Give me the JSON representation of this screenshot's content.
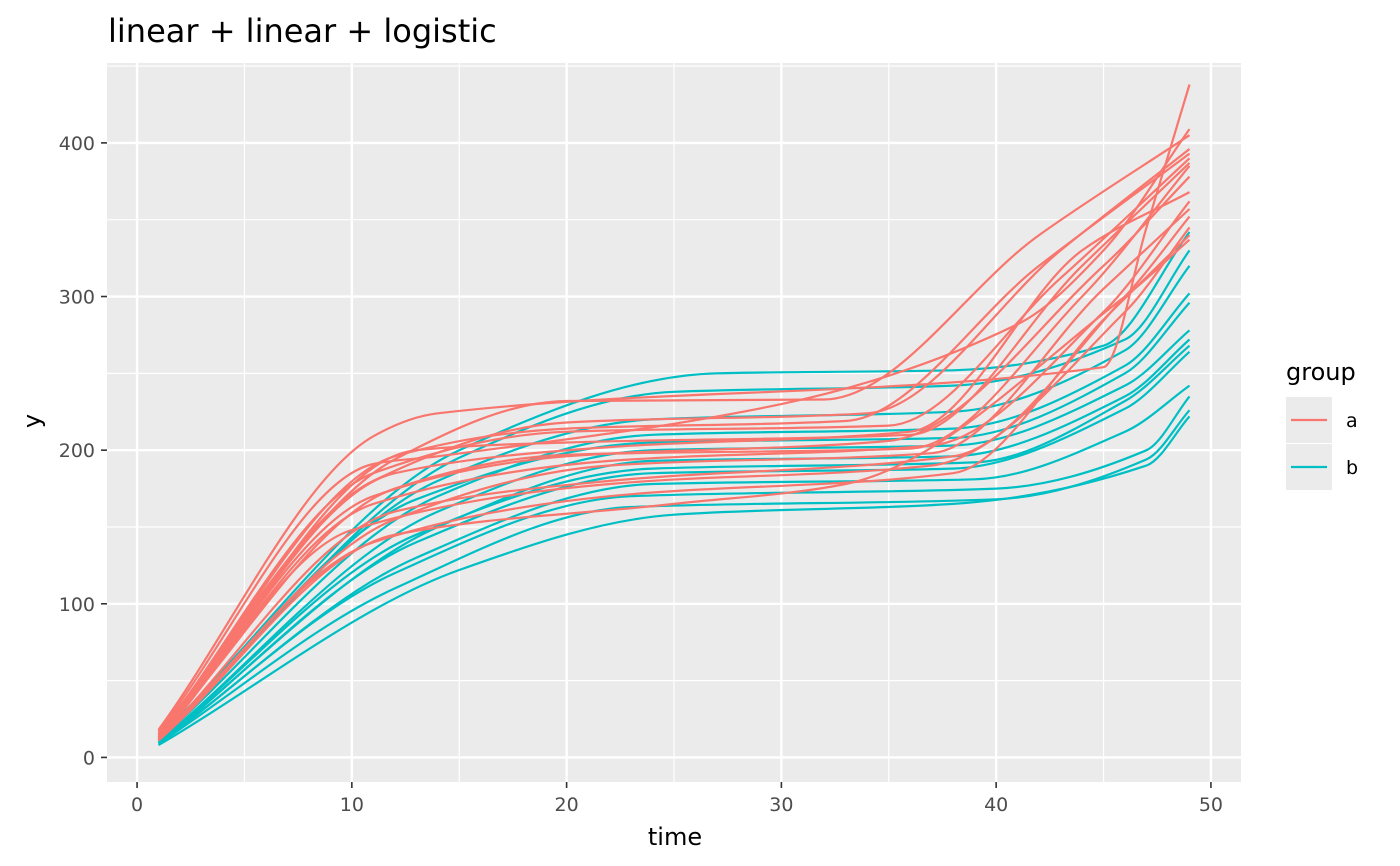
{
  "chart_data": {
    "type": "line",
    "title": "linear + linear + logistic",
    "xlabel": "time",
    "ylabel": "y",
    "xlim": [
      -1.4,
      51.4
    ],
    "ylim": [
      -16,
      452
    ],
    "x_ticks": [
      0,
      10,
      20,
      30,
      40,
      50
    ],
    "y_ticks": [
      0,
      100,
      200,
      300,
      400
    ],
    "x_tick_labels": [
      "0",
      "10",
      "20",
      "30",
      "40",
      "50"
    ],
    "y_tick_labels": [
      "0",
      "100",
      "200",
      "300",
      "400"
    ],
    "grid": true,
    "legend": {
      "title": "group",
      "position": "right",
      "entries": [
        {
          "label": "a",
          "color": "#F8766D"
        },
        {
          "label": "b",
          "color": "#00BFC4"
        }
      ]
    },
    "colors": {
      "panel": "#EBEBEB",
      "grid": "#FFFFFF",
      "a": "#F8766D",
      "b": "#00BFC4"
    },
    "series": [
      {
        "group": "a",
        "x": [
          1,
          11,
          14,
          45,
          47,
          49
        ],
        "y": [
          18,
          209,
          224,
          254,
          345,
          438
        ]
      },
      {
        "group": "a",
        "x": [
          1,
          11,
          14,
          30,
          41,
          45,
          49
        ],
        "y": [
          17,
          191,
          196,
          230,
          282,
          330,
          409
        ]
      },
      {
        "group": "a",
        "x": [
          1,
          12,
          20,
          32,
          42,
          49
        ],
        "y": [
          16,
          194,
          232,
          233,
          340,
          405
        ]
      },
      {
        "group": "a",
        "x": [
          1,
          11,
          20,
          34,
          43,
          49
        ],
        "y": [
          16,
          180,
          218,
          224,
          330,
          396
        ]
      },
      {
        "group": "a",
        "x": [
          1,
          12,
          20,
          33,
          42,
          49
        ],
        "y": [
          15,
          196,
          214,
          219,
          320,
          393
        ]
      },
      {
        "group": "a",
        "x": [
          1,
          11,
          20,
          35,
          43,
          49
        ],
        "y": [
          15,
          185,
          212,
          216,
          312,
          390
        ]
      },
      {
        "group": "a",
        "x": [
          1,
          13,
          20,
          36,
          44,
          49
        ],
        "y": [
          14,
          200,
          205,
          210,
          320,
          387
        ]
      },
      {
        "group": "a",
        "x": [
          1,
          12,
          20,
          36,
          44,
          49
        ],
        "y": [
          14,
          175,
          197,
          201,
          300,
          385
        ]
      },
      {
        "group": "a",
        "x": [
          1,
          11,
          20,
          35,
          45,
          49
        ],
        "y": [
          13,
          170,
          196,
          206,
          320,
          378
        ]
      },
      {
        "group": "a",
        "x": [
          1,
          12,
          22,
          36,
          44,
          49
        ],
        "y": [
          13,
          185,
          202,
          212,
          330,
          368
        ]
      },
      {
        "group": "a",
        "x": [
          1,
          11,
          22,
          37,
          45,
          49
        ],
        "y": [
          13,
          165,
          193,
          203,
          290,
          362
        ]
      },
      {
        "group": "a",
        "x": [
          1,
          12,
          22,
          37,
          45,
          49
        ],
        "y": [
          12,
          155,
          190,
          198,
          305,
          357
        ]
      },
      {
        "group": "a",
        "x": [
          1,
          12,
          22,
          38,
          46,
          49
        ],
        "y": [
          12,
          160,
          180,
          196,
          300,
          352
        ]
      },
      {
        "group": "a",
        "x": [
          1,
          10,
          22,
          37,
          46,
          49
        ],
        "y": [
          12,
          148,
          178,
          190,
          290,
          345
        ]
      },
      {
        "group": "a",
        "x": [
          1,
          11,
          22,
          38,
          45,
          49
        ],
        "y": [
          11,
          140,
          170,
          185,
          285,
          340
        ]
      },
      {
        "group": "a",
        "x": [
          1,
          12,
          25,
          33,
          46,
          49
        ],
        "y": [
          11,
          145,
          165,
          178,
          300,
          337
        ]
      },
      {
        "group": "b",
        "x": [
          1,
          15,
          27,
          38,
          45,
          49
        ],
        "y": [
          13,
          200,
          250,
          252,
          268,
          342
        ]
      },
      {
        "group": "b",
        "x": [
          1,
          15,
          25,
          38,
          46,
          49
        ],
        "y": [
          12,
          195,
          238,
          242,
          272,
          330
        ]
      },
      {
        "group": "b",
        "x": [
          1,
          14,
          24,
          38,
          46,
          49
        ],
        "y": [
          12,
          180,
          220,
          225,
          265,
          320
        ]
      },
      {
        "group": "b",
        "x": [
          1,
          14,
          24,
          38,
          46,
          49
        ],
        "y": [
          11,
          170,
          210,
          214,
          255,
          302
        ]
      },
      {
        "group": "b",
        "x": [
          1,
          13,
          24,
          38,
          46,
          49
        ],
        "y": [
          11,
          168,
          205,
          208,
          250,
          296
        ]
      },
      {
        "group": "b",
        "x": [
          1,
          14,
          24,
          38,
          46,
          49
        ],
        "y": [
          10,
          160,
          200,
          203,
          242,
          278
        ]
      },
      {
        "group": "b",
        "x": [
          1,
          14,
          24,
          38,
          46,
          49
        ],
        "y": [
          10,
          150,
          193,
          196,
          235,
          272
        ]
      },
      {
        "group": "b",
        "x": [
          1,
          13,
          24,
          39,
          46,
          49
        ],
        "y": [
          10,
          145,
          188,
          192,
          232,
          268
        ]
      },
      {
        "group": "b",
        "x": [
          1,
          13,
          24,
          38,
          46,
          49
        ],
        "y": [
          9,
          140,
          185,
          188,
          227,
          264
        ]
      },
      {
        "group": "b",
        "x": [
          1,
          13,
          24,
          39,
          46,
          49
        ],
        "y": [
          9,
          130,
          178,
          181,
          212,
          242
        ]
      },
      {
        "group": "b",
        "x": [
          1,
          12,
          23,
          40,
          47,
          49
        ],
        "y": [
          9,
          120,
          170,
          175,
          200,
          235
        ]
      },
      {
        "group": "b",
        "x": [
          1,
          12,
          23,
          40,
          47,
          49
        ],
        "y": [
          9,
          110,
          163,
          168,
          194,
          226
        ]
      },
      {
        "group": "b",
        "x": [
          1,
          15,
          25,
          38,
          47,
          49
        ],
        "y": [
          8,
          122,
          158,
          165,
          190,
          222
        ]
      }
    ]
  }
}
